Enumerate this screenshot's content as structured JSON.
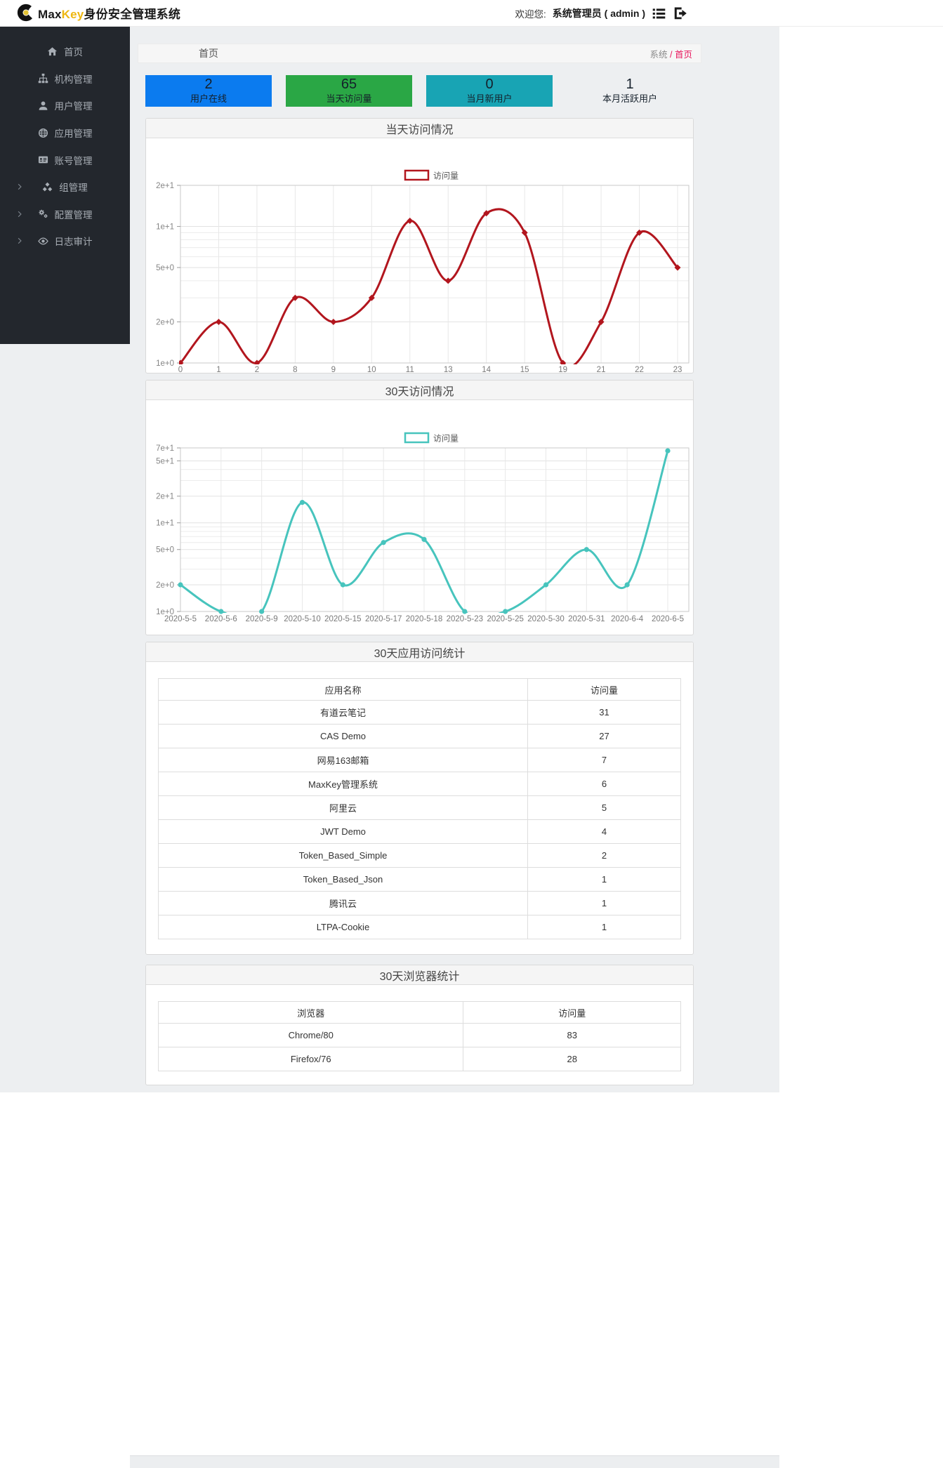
{
  "header": {
    "brand_max": "Max",
    "brand_key": "Key",
    "brand_suffix": "身份安全管理系统",
    "welcome_label": "欢迎您:",
    "user_display": "系统管理员 ( admin )"
  },
  "sidebar": {
    "items": [
      {
        "label": "首页",
        "icon": "home-icon",
        "group": false
      },
      {
        "label": "机构管理",
        "icon": "sitemap-icon",
        "group": false
      },
      {
        "label": "用户管理",
        "icon": "user-icon",
        "group": false
      },
      {
        "label": "应用管理",
        "icon": "globe-icon",
        "group": false
      },
      {
        "label": "账号管理",
        "icon": "id-card-icon",
        "group": false
      },
      {
        "label": "组管理",
        "icon": "cubes-icon",
        "group": true
      },
      {
        "label": "配置管理",
        "icon": "gears-icon",
        "group": true
      },
      {
        "label": "日志审计",
        "icon": "eye-icon",
        "group": true
      }
    ]
  },
  "breadcrumb": {
    "page_title": "首页",
    "root": "系统",
    "separator": " / ",
    "current": "首页"
  },
  "stats": [
    {
      "value": "2",
      "label": "用户在线",
      "color": "#0b7bef"
    },
    {
      "value": "65",
      "label": "当天访问量",
      "color": "#2aa745"
    },
    {
      "value": "0",
      "label": "当月新用户",
      "color": "#18a4b4"
    },
    {
      "value": "1",
      "label": "本月活跃用户",
      "color": "transparent"
    }
  ],
  "chart_data": [
    {
      "type": "line",
      "title": "当天访问情况",
      "legend": "访问量",
      "color": "#b2161e",
      "marker": "diamond",
      "categories": [
        "0",
        "1",
        "2",
        "8",
        "9",
        "10",
        "11",
        "13",
        "14",
        "15",
        "19",
        "21",
        "22",
        "23"
      ],
      "values": [
        1,
        2,
        1,
        3,
        2,
        3,
        11,
        4,
        12.5,
        9,
        1,
        2,
        9,
        5
      ],
      "xlabel": "",
      "ylabel": "",
      "yscale": "log",
      "ylim": [
        1,
        20
      ],
      "grid": true,
      "legend_position": "top-center",
      "yticks": [
        {
          "v": 20,
          "label": "2e+1"
        },
        {
          "v": 10,
          "label": "1e+1"
        },
        {
          "v": 5,
          "label": "5e+0"
        },
        {
          "v": 2,
          "label": "2e+0"
        },
        {
          "v": 1,
          "label": "1e+0"
        }
      ],
      "yminor": [
        9,
        8,
        7,
        6,
        4,
        3
      ]
    },
    {
      "type": "line",
      "title": "30天访问情况",
      "legend": "访问量",
      "color": "#47c4bd",
      "marker": "circle",
      "categories": [
        "2020-5-5",
        "2020-5-6",
        "2020-5-9",
        "2020-5-10",
        "2020-5-15",
        "2020-5-17",
        "2020-5-18",
        "2020-5-23",
        "2020-5-25",
        "2020-5-30",
        "2020-5-31",
        "2020-6-4",
        "2020-6-5"
      ],
      "values": [
        2,
        1,
        1,
        17,
        2,
        6,
        6.5,
        1,
        1,
        2,
        5,
        2,
        65
      ],
      "xlabel": "",
      "ylabel": "",
      "yscale": "log",
      "ylim": [
        1,
        70
      ],
      "grid": true,
      "legend_position": "top-center",
      "yticks": [
        {
          "v": 70,
          "label": "7e+1"
        },
        {
          "v": 50,
          "label": "5e+1"
        },
        {
          "v": 20,
          "label": "2e+1"
        },
        {
          "v": 10,
          "label": "1e+1"
        },
        {
          "v": 5,
          "label": "5e+0"
        },
        {
          "v": 2,
          "label": "2e+0"
        },
        {
          "v": 1,
          "label": "1e+0"
        }
      ],
      "yminor": [
        40,
        30,
        9,
        8,
        7,
        6,
        4,
        3
      ]
    }
  ],
  "app_table": {
    "title": "30天应用访问统计",
    "columns": [
      "应用名称",
      "访问量"
    ],
    "rows": [
      [
        "有道云笔记",
        "31"
      ],
      [
        "CAS Demo",
        "27"
      ],
      [
        "网易163邮箱",
        "7"
      ],
      [
        "MaxKey管理系统",
        "6"
      ],
      [
        "阿里云",
        "5"
      ],
      [
        "JWT Demo",
        "4"
      ],
      [
        "Token_Based_Simple",
        "2"
      ],
      [
        "Token_Based_Json",
        "1"
      ],
      [
        "腾讯云",
        "1"
      ],
      [
        "LTPA-Cookie",
        "1"
      ]
    ]
  },
  "browser_table": {
    "title": "30天浏览器统计",
    "columns": [
      "浏览器",
      "访问量"
    ],
    "rows": [
      [
        "Chrome/80",
        "83"
      ],
      [
        "Firefox/76",
        "28"
      ]
    ]
  }
}
